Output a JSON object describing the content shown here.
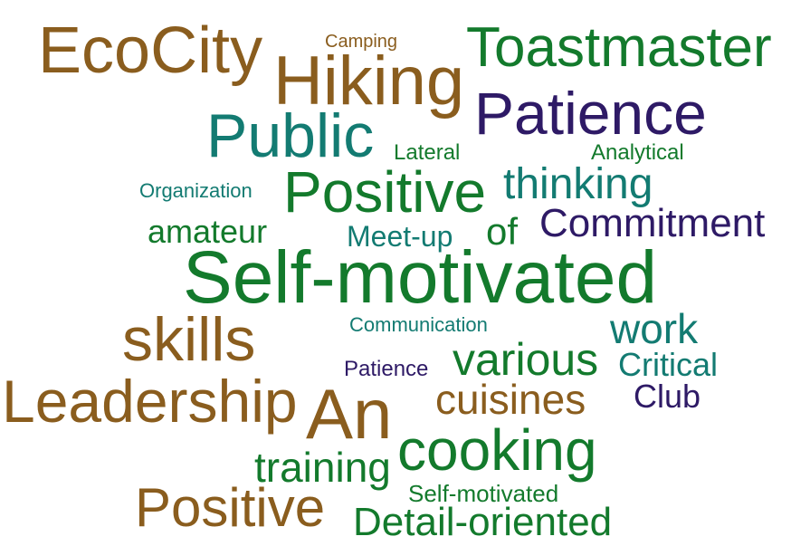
{
  "words": {
    "ecocity": "EcoCity",
    "camping": "Camping",
    "toastmaster": "Toastmaster",
    "hiking": "Hiking",
    "patience_large": "Patience",
    "public": "Public",
    "lateral": "Lateral",
    "analytical": "Analytical",
    "organization": "Organization",
    "positive_top": "Positive",
    "thinking": "thinking",
    "amateur": "amateur",
    "meetup": "Meet-up",
    "of": "of",
    "commitment": "Commitment",
    "self_motivated_large": "Self-motivated",
    "skills": "skills",
    "communication": "Communication",
    "work": "work",
    "various": "various",
    "patience_small": "Patience",
    "critical": "Critical",
    "leadership": "Leadership",
    "an": "An",
    "cuisines": "cuisines",
    "club": "Club",
    "cooking": "cooking",
    "training": "training",
    "positive_bottom": "Positive",
    "self_motivated_small": "Self-motivated",
    "detail_oriented": "Detail-oriented"
  },
  "colors": {
    "brown": "#8a5d1e",
    "green": "#137a2c",
    "teal": "#137b72",
    "navy": "#2e1a66"
  }
}
